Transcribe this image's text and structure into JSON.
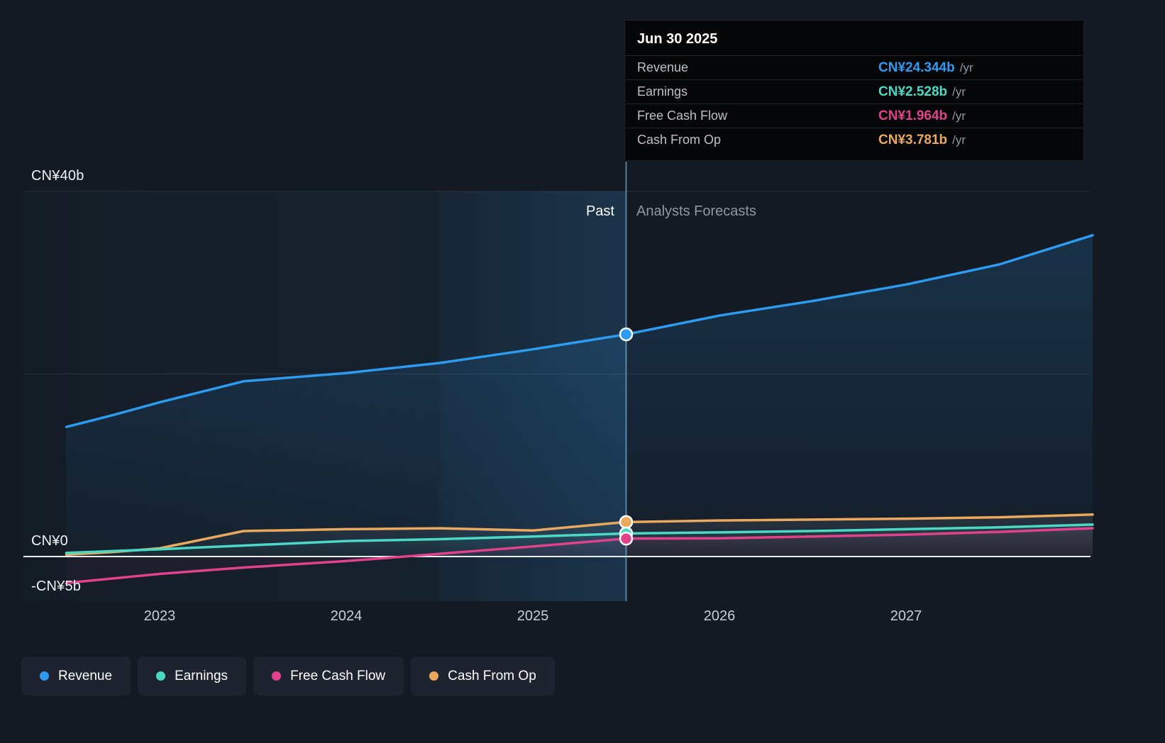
{
  "tooltip": {
    "title": "Jun 30 2025",
    "rows": [
      {
        "label": "Revenue",
        "value": "CN¥24.344b",
        "suffix": "/yr",
        "color": "#2d9bf0"
      },
      {
        "label": "Earnings",
        "value": "CN¥2.528b",
        "suffix": "/yr",
        "color": "#4bd8c4"
      },
      {
        "label": "Free Cash Flow",
        "value": "CN¥1.964b",
        "suffix": "/yr",
        "color": "#e2418b"
      },
      {
        "label": "Cash From Op",
        "value": "CN¥3.781b",
        "suffix": "/yr",
        "color": "#eba95e"
      }
    ]
  },
  "chart_data": {
    "type": "line",
    "currency_unit": "CN¥ billions",
    "x_axis": {
      "ticks": [
        {
          "value": 2023,
          "label": "2023"
        },
        {
          "value": 2024,
          "label": "2024"
        },
        {
          "value": 2025,
          "label": "2025"
        },
        {
          "value": 2026,
          "label": "2026"
        },
        {
          "value": 2027,
          "label": "2027"
        }
      ]
    },
    "y_axis": {
      "gridlines": [
        {
          "value": 40,
          "label": "CN¥40b",
          "strong": false,
          "line": true
        },
        {
          "value": 20,
          "label": "",
          "strong": false,
          "line": true
        },
        {
          "value": 0,
          "label": "CN¥0",
          "strong": true,
          "line": true
        },
        {
          "value": -5,
          "label": "-CN¥5b",
          "strong": false,
          "line": false
        }
      ]
    },
    "divider": {
      "x": 2025.5,
      "date": "Jun 30 2025",
      "past_label": "Past",
      "forecast_label": "Analysts Forecasts"
    },
    "highlight_band": {
      "from": 2024.5,
      "to": 2025.5
    },
    "x": [
      2022.5,
      2022.75,
      2023,
      2023.45,
      2024,
      2024.5,
      2025,
      2025.5,
      2026,
      2026.5,
      2027,
      2027.5,
      2028
    ],
    "series": [
      {
        "name": "Revenue",
        "color": "#2d9bf0",
        "fill_color": "#2d9bf0",
        "fill_opacity": 0.18,
        "marker_value": 24.344,
        "values": [
          14.2,
          15.5,
          16.9,
          19.2,
          20.1,
          21.2,
          22.7,
          24.344,
          26.4,
          28.0,
          29.8,
          32.0,
          35.2
        ]
      },
      {
        "name": "Cash From Op",
        "color": "#eba95e",
        "fill_color": "#d8dee6",
        "fill_opacity": 0.1,
        "marker_value": 3.781,
        "values": [
          0.2,
          0.5,
          0.9,
          2.8,
          3.0,
          3.1,
          2.85,
          3.781,
          3.95,
          4.05,
          4.15,
          4.3,
          4.6
        ]
      },
      {
        "name": "Earnings",
        "color": "#4bd8c4",
        "fill_color": "#4bd8c4",
        "fill_opacity": 0.1,
        "marker_value": 2.528,
        "values": [
          0.4,
          0.6,
          0.8,
          1.2,
          1.7,
          1.9,
          2.2,
          2.528,
          2.65,
          2.8,
          3.0,
          3.2,
          3.5
        ]
      },
      {
        "name": "Free Cash Flow",
        "color": "#e2418b",
        "fill_color": "#e2418b",
        "fill_opacity": 0.1,
        "marker_value": 1.964,
        "values": [
          -2.9,
          -2.4,
          -1.9,
          -1.2,
          -0.5,
          0.3,
          1.1,
          1.964,
          2.0,
          2.2,
          2.4,
          2.7,
          3.1
        ]
      }
    ],
    "legend_order": [
      "Revenue",
      "Earnings",
      "Free Cash Flow",
      "Cash From Op"
    ]
  }
}
